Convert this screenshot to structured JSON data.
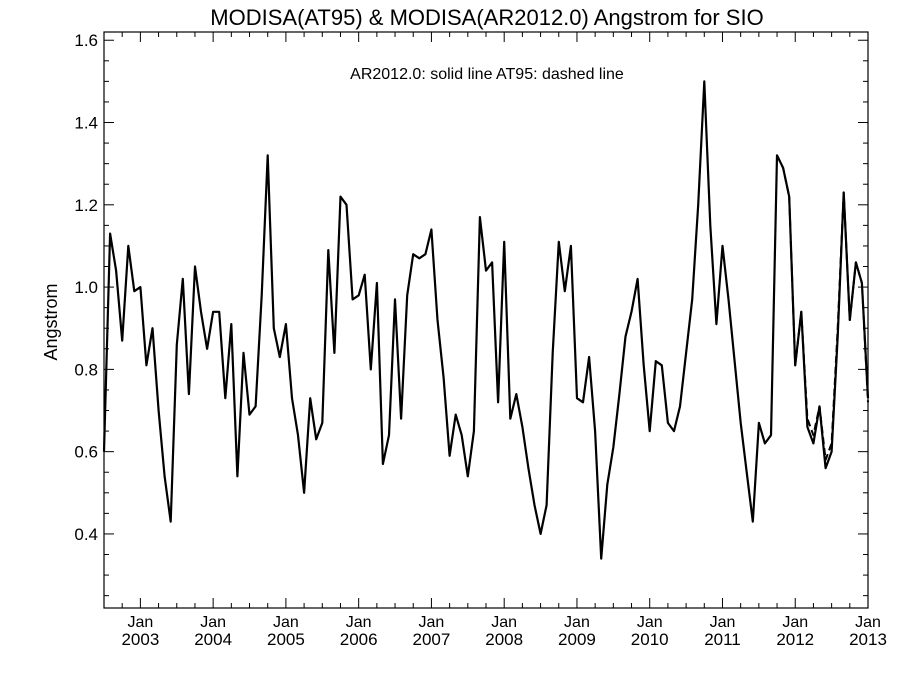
{
  "chart_data": {
    "type": "line",
    "title": "MODISA(AT95) & MODISA(AR2012.0)  Angstrom for SIO",
    "annotation": "AR2012.0: solid line   AT95: dashed line",
    "xlabel": "",
    "ylabel": "Angstrom",
    "ylim": [
      0.22,
      1.62
    ],
    "yticks": [
      0.4,
      0.6,
      0.8,
      1.0,
      1.2,
      1.4,
      1.6
    ],
    "ytick_labels": [
      "0.4",
      "0.6",
      "0.8",
      "1.0",
      "1.2",
      "1.4",
      "1.6"
    ],
    "xlim": [
      "2002-07",
      "2013-01"
    ],
    "xticks": [
      {
        "date": "2003-01",
        "month": "Jan",
        "year": "2003"
      },
      {
        "date": "2004-01",
        "month": "Jan",
        "year": "2004"
      },
      {
        "date": "2005-01",
        "month": "Jan",
        "year": "2005"
      },
      {
        "date": "2006-01",
        "month": "Jan",
        "year": "2006"
      },
      {
        "date": "2007-01",
        "month": "Jan",
        "year": "2007"
      },
      {
        "date": "2008-01",
        "month": "Jan",
        "year": "2008"
      },
      {
        "date": "2009-01",
        "month": "Jan",
        "year": "2009"
      },
      {
        "date": "2010-01",
        "month": "Jan",
        "year": "2010"
      },
      {
        "date": "2011-01",
        "month": "Jan",
        "year": "2011"
      },
      {
        "date": "2012-01",
        "month": "Jan",
        "year": "2012"
      },
      {
        "date": "2013-01",
        "month": "Jan",
        "year": "2013"
      }
    ],
    "grid": false,
    "legend": "none",
    "color": "#000000",
    "series": [
      {
        "style": "solid",
        "x": [
          "2002-07",
          "2002-08",
          "2002-09",
          "2002-10",
          "2002-11",
          "2002-12",
          "2003-01",
          "2003-02",
          "2003-03",
          "2003-04",
          "2003-05",
          "2003-06",
          "2003-07",
          "2003-08",
          "2003-09",
          "2003-10",
          "2003-11",
          "2003-12",
          "2004-01",
          "2004-02",
          "2004-03",
          "2004-04",
          "2004-05",
          "2004-06",
          "2004-07",
          "2004-08",
          "2004-09",
          "2004-10",
          "2004-11",
          "2004-12",
          "2005-01",
          "2005-02",
          "2005-03",
          "2005-04",
          "2005-05",
          "2005-06",
          "2005-07",
          "2005-08",
          "2005-09",
          "2005-10",
          "2005-11",
          "2005-12",
          "2006-01",
          "2006-02",
          "2006-03",
          "2006-04",
          "2006-05",
          "2006-06",
          "2006-07",
          "2006-08",
          "2006-09",
          "2006-10",
          "2006-11",
          "2006-12",
          "2007-01",
          "2007-02",
          "2007-03",
          "2007-04",
          "2007-05",
          "2007-06",
          "2007-07",
          "2007-08",
          "2007-09",
          "2007-10",
          "2007-11",
          "2007-12",
          "2008-01",
          "2008-02",
          "2008-03",
          "2008-04",
          "2008-05",
          "2008-06",
          "2008-07",
          "2008-08",
          "2008-09",
          "2008-10",
          "2008-11",
          "2008-12",
          "2009-01",
          "2009-02",
          "2009-03",
          "2009-04",
          "2009-05",
          "2009-06",
          "2009-07",
          "2009-08",
          "2009-09",
          "2009-10",
          "2009-11",
          "2009-12",
          "2010-01",
          "2010-02",
          "2010-03",
          "2010-04",
          "2010-05",
          "2010-06",
          "2010-07",
          "2010-08",
          "2010-09",
          "2010-10",
          "2010-11",
          "2010-12",
          "2011-01",
          "2011-02",
          "2011-03",
          "2011-04",
          "2011-05",
          "2011-06",
          "2011-07",
          "2011-08",
          "2011-09",
          "2011-10",
          "2011-11",
          "2011-12",
          "2012-01",
          "2012-02",
          "2012-03",
          "2012-04",
          "2012-05",
          "2012-06",
          "2012-07",
          "2012-08",
          "2012-09",
          "2012-10",
          "2012-11",
          "2012-12",
          "2013-01"
        ],
        "values": [
          0.6,
          1.13,
          1.04,
          0.87,
          1.1,
          0.99,
          1.0,
          0.81,
          0.9,
          0.7,
          0.54,
          0.43,
          0.86,
          1.02,
          0.74,
          1.05,
          0.94,
          0.85,
          0.94,
          0.94,
          0.73,
          0.91,
          0.54,
          0.84,
          0.69,
          0.71,
          0.98,
          1.32,
          0.9,
          0.83,
          0.91,
          0.73,
          0.64,
          0.5,
          0.73,
          0.63,
          0.67,
          1.09,
          0.84,
          1.22,
          1.2,
          0.97,
          0.98,
          1.03,
          0.8,
          1.01,
          0.57,
          0.64,
          0.97,
          0.68,
          0.98,
          1.08,
          1.07,
          1.08,
          1.14,
          0.92,
          0.78,
          0.59,
          0.69,
          0.64,
          0.54,
          0.65,
          1.17,
          1.04,
          1.06,
          0.72,
          1.11,
          0.68,
          0.74,
          0.66,
          0.56,
          0.47,
          0.4,
          0.47,
          0.84,
          1.11,
          0.99,
          1.1,
          0.73,
          0.72,
          0.83,
          0.65,
          0.34,
          0.52,
          0.61,
          0.74,
          0.88,
          0.94,
          1.02,
          0.81,
          0.65,
          0.82,
          0.81,
          0.67,
          0.65,
          0.71,
          0.84,
          0.97,
          1.2,
          1.5,
          1.15,
          0.91,
          1.1,
          0.97,
          0.82,
          0.67,
          0.55,
          0.43,
          0.67,
          0.62,
          0.64,
          1.32,
          1.29,
          1.22,
          0.81,
          0.94,
          0.66,
          0.62,
          0.71,
          0.56,
          0.6,
          0.88,
          1.23,
          0.92,
          1.06,
          1.01,
          0.73
        ]
      },
      {
        "style": "dashed",
        "x": [
          "2011-10",
          "2011-11",
          "2011-12",
          "2012-01",
          "2012-02",
          "2012-03",
          "2012-04",
          "2012-05",
          "2012-06",
          "2012-07",
          "2012-08",
          "2012-09",
          "2012-10",
          "2012-11",
          "2012-12",
          "2013-01"
        ],
        "values": [
          1.32,
          1.29,
          1.22,
          0.81,
          0.94,
          0.68,
          0.64,
          0.71,
          0.58,
          0.62,
          0.9,
          1.23,
          0.92,
          1.06,
          1.01,
          0.72
        ]
      }
    ]
  }
}
